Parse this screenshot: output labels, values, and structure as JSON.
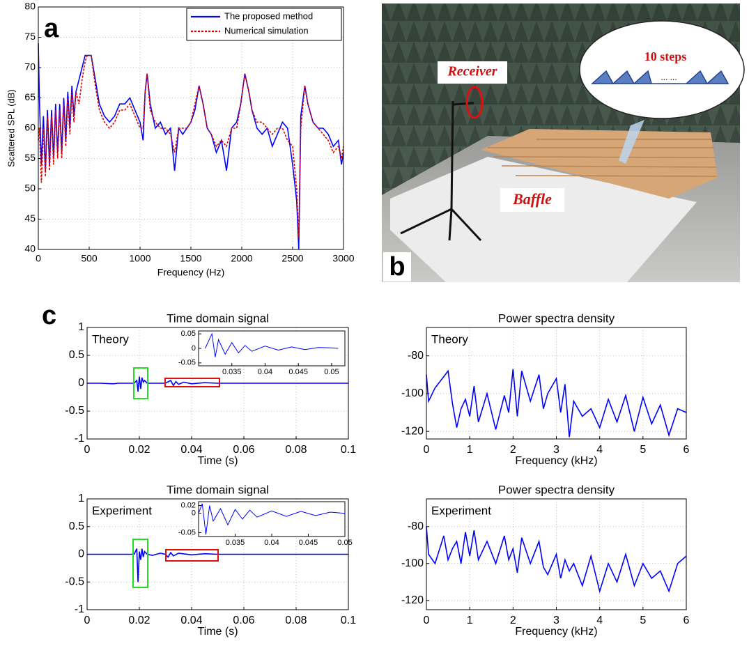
{
  "chart_data": [
    {
      "type": "line",
      "ylabel": "Scattered SPL (dB)",
      "xlabel": "Frequency (Hz)",
      "panel_label": "a",
      "xlim": [
        0,
        3000
      ],
      "xticks": [
        0,
        500,
        1000,
        1500,
        2000,
        2500,
        3000
      ],
      "ylim": [
        40,
        80
      ],
      "yticks": [
        40,
        45,
        50,
        55,
        60,
        65,
        70,
        75,
        80
      ],
      "grid": true,
      "legend": "upper right",
      "x": [
        0,
        10,
        30,
        50,
        70,
        90,
        110,
        130,
        150,
        170,
        190,
        210,
        230,
        250,
        270,
        290,
        310,
        330,
        350,
        370,
        400,
        430,
        460,
        480,
        500,
        520,
        560,
        600,
        650,
        700,
        750,
        800,
        850,
        900,
        950,
        1000,
        1030,
        1050,
        1070,
        1100,
        1150,
        1200,
        1250,
        1300,
        1340,
        1380,
        1420,
        1460,
        1500,
        1540,
        1580,
        1620,
        1660,
        1700,
        1750,
        1800,
        1850,
        1900,
        1950,
        1990,
        2030,
        2070,
        2100,
        2150,
        2200,
        2250,
        2300,
        2350,
        2400,
        2450,
        2500,
        2540,
        2560,
        2580,
        2620,
        2650,
        2700,
        2750,
        2800,
        2850,
        2900,
        2950,
        2980,
        3000
      ],
      "series": [
        {
          "name": "The proposed method",
          "color": "#0000ff",
          "linestyle": "solid",
          "values": [
            74,
            65,
            54,
            62,
            53,
            63,
            54,
            63,
            55,
            64,
            56,
            64,
            56,
            65,
            58,
            66,
            60,
            67,
            62,
            66,
            68,
            70,
            72,
            72,
            72,
            72,
            68,
            64,
            62,
            61,
            62,
            64,
            64,
            65,
            63,
            61,
            58,
            66,
            69,
            64,
            60,
            61,
            59,
            60,
            53,
            60,
            59,
            60,
            61,
            63,
            67,
            64,
            60,
            59,
            56,
            58,
            53,
            60,
            61,
            64,
            69,
            66,
            63,
            60,
            59,
            60,
            57,
            59,
            61,
            60,
            54,
            48,
            40,
            62,
            67,
            64,
            61,
            60,
            60,
            59,
            57,
            58,
            54,
            56
          ]
        },
        {
          "name": "Numerical simulation",
          "color": "#e00000",
          "linestyle": "dashed",
          "values": [
            58,
            60,
            51,
            60,
            52,
            62,
            53,
            62,
            54,
            63,
            55,
            63,
            55,
            64,
            57,
            65,
            59,
            66,
            61,
            66,
            64,
            68,
            71,
            72,
            72,
            72,
            67,
            63,
            61,
            60,
            61,
            63,
            63,
            64,
            62,
            60,
            60,
            66,
            69,
            63,
            61,
            60,
            60,
            59,
            56,
            60,
            60,
            60,
            61,
            64,
            67,
            64,
            60,
            59,
            57,
            58,
            57,
            60,
            60,
            64,
            69,
            66,
            63,
            61,
            61,
            60,
            59,
            60,
            60,
            58,
            57,
            50,
            42,
            60,
            67,
            64,
            61,
            60,
            59,
            58,
            56,
            57,
            55,
            57
          ]
        }
      ]
    },
    {
      "type": "line",
      "title": "Time domain signal",
      "annotation": "Theory",
      "xlabel": "Time (s)",
      "panel_label": "c",
      "xlim": [
        0,
        0.1
      ],
      "xticks": [
        0,
        0.02,
        0.04,
        0.06,
        0.08,
        0.1
      ],
      "ylim": [
        -1,
        1
      ],
      "yticks": [
        -1,
        -0.5,
        0,
        0.5,
        1
      ],
      "grid": true,
      "color": "#0000ff",
      "x": [
        0,
        0.005,
        0.01,
        0.012,
        0.015,
        0.018,
        0.019,
        0.0195,
        0.02,
        0.0205,
        0.021,
        0.0215,
        0.022,
        0.023,
        0.025,
        0.03,
        0.032,
        0.033,
        0.034,
        0.035,
        0.037,
        0.04,
        0.045,
        0.05,
        0.06,
        0.08,
        0.1
      ],
      "values": [
        0,
        0,
        -0.01,
        0,
        0,
        0,
        0.05,
        -0.15,
        0.12,
        -0.1,
        0.1,
        0.02,
        0.05,
        0,
        0,
        0,
        0.05,
        -0.04,
        0.03,
        -0.02,
        0.02,
        -0.01,
        0.01,
        0,
        0,
        0,
        0
      ],
      "inset": {
        "xlim": [
          0.03,
          0.052
        ],
        "xticks": [
          0.035,
          0.04,
          0.045,
          0.05
        ],
        "ylim": [
          -0.06,
          0.06
        ],
        "yticks": [
          -0.05,
          0,
          0.05
        ],
        "color": "#0000ff",
        "x": [
          0.031,
          0.032,
          0.0325,
          0.033,
          0.034,
          0.035,
          0.036,
          0.037,
          0.038,
          0.04,
          0.042,
          0.044,
          0.046,
          0.048,
          0.05,
          0.051
        ],
        "values": [
          0,
          0.05,
          -0.03,
          0.03,
          -0.02,
          0.02,
          -0.015,
          0.01,
          -0.01,
          0.008,
          -0.006,
          0.005,
          -0.004,
          0.003,
          0.002,
          0
        ]
      }
    },
    {
      "type": "line",
      "title": "Power spectra density",
      "annotation": "Theory",
      "xlabel": "Frequency (kHz)",
      "xlim": [
        0,
        6
      ],
      "xticks": [
        0,
        1,
        2,
        3,
        4,
        5,
        6
      ],
      "ylim": [
        -124,
        -65
      ],
      "yticks": [
        -120,
        -100,
        -80
      ],
      "grid": true,
      "color": "#0000ff",
      "x": [
        0,
        0.05,
        0.2,
        0.4,
        0.5,
        0.6,
        0.7,
        0.8,
        0.9,
        1.0,
        1.1,
        1.2,
        1.4,
        1.6,
        1.8,
        1.9,
        2.0,
        2.1,
        2.2,
        2.4,
        2.6,
        2.7,
        2.8,
        3.0,
        3.1,
        3.2,
        3.3,
        3.4,
        3.6,
        3.8,
        4.0,
        4.2,
        4.4,
        4.6,
        4.8,
        5.0,
        5.2,
        5.4,
        5.6,
        5.8,
        6.0
      ],
      "values": [
        -90,
        -104,
        -97,
        -91,
        -88,
        -105,
        -118,
        -108,
        -103,
        -112,
        -96,
        -115,
        -100,
        -119,
        -101,
        -110,
        -87,
        -112,
        -88,
        -104,
        -90,
        -108,
        -100,
        -92,
        -110,
        -95,
        -123,
        -104,
        -112,
        -108,
        -118,
        -103,
        -115,
        -101,
        -120,
        -102,
        -116,
        -106,
        -122,
        -108,
        -110
      ]
    },
    {
      "type": "line",
      "title": "Time domain signal",
      "annotation": "Experiment",
      "xlabel": "Time (s)",
      "xlim": [
        0,
        0.1
      ],
      "xticks": [
        0,
        0.02,
        0.04,
        0.06,
        0.08,
        0.1
      ],
      "ylim": [
        -1,
        1
      ],
      "yticks": [
        -1,
        -0.5,
        0,
        0.5,
        1
      ],
      "grid": true,
      "color": "#0000ff",
      "x": [
        0,
        0.005,
        0.01,
        0.015,
        0.018,
        0.019,
        0.0195,
        0.02,
        0.0205,
        0.021,
        0.0215,
        0.022,
        0.023,
        0.025,
        0.028,
        0.03,
        0.031,
        0.032,
        0.033,
        0.035,
        0.04,
        0.045,
        0.05,
        0.06,
        0.08,
        0.1
      ],
      "values": [
        0,
        0,
        0,
        0,
        0,
        0.1,
        -0.5,
        0.05,
        -0.1,
        0.1,
        -0.05,
        0.05,
        0,
        -0.02,
        0.02,
        0,
        -0.05,
        0.03,
        -0.03,
        0.02,
        -0.01,
        0.01,
        0,
        0,
        0,
        0
      ],
      "inset": {
        "xlim": [
          0.03,
          0.05
        ],
        "xticks": [
          0.035,
          0.04,
          0.045,
          0.05
        ],
        "ylim": [
          -0.06,
          0.03
        ],
        "yticks": [
          -0.05,
          0,
          0.02
        ],
        "color": "#0000ff",
        "x": [
          0.03,
          0.0305,
          0.031,
          0.0315,
          0.032,
          0.033,
          0.034,
          0.035,
          0.036,
          0.037,
          0.038,
          0.04,
          0.042,
          0.044,
          0.046,
          0.048,
          0.05
        ],
        "values": [
          0,
          0.025,
          -0.055,
          0.02,
          -0.02,
          0.012,
          -0.03,
          0.01,
          -0.015,
          0.008,
          -0.01,
          0.006,
          -0.008,
          0.005,
          -0.006,
          0.003,
          0
        ]
      }
    },
    {
      "type": "line",
      "title": "Power spectra density",
      "annotation": "Experiment",
      "xlabel": "Frequency (kHz)",
      "xlim": [
        0,
        6
      ],
      "xticks": [
        0,
        1,
        2,
        3,
        4,
        5,
        6
      ],
      "ylim": [
        -125,
        -65
      ],
      "yticks": [
        -120,
        -100,
        -80
      ],
      "grid": true,
      "color": "#0000ff",
      "x": [
        0,
        0.05,
        0.2,
        0.4,
        0.5,
        0.6,
        0.7,
        0.8,
        0.9,
        1.0,
        1.1,
        1.2,
        1.4,
        1.6,
        1.8,
        1.9,
        2.0,
        2.1,
        2.2,
        2.4,
        2.6,
        2.7,
        2.8,
        3.0,
        3.1,
        3.2,
        3.3,
        3.4,
        3.6,
        3.8,
        4.0,
        4.2,
        4.4,
        4.6,
        4.8,
        5.0,
        5.2,
        5.4,
        5.6,
        5.8,
        6.0
      ],
      "values": [
        -80,
        -95,
        -100,
        -85,
        -98,
        -92,
        -88,
        -100,
        -83,
        -96,
        -82,
        -98,
        -88,
        -100,
        -85,
        -98,
        -92,
        -105,
        -86,
        -100,
        -88,
        -102,
        -106,
        -95,
        -108,
        -98,
        -104,
        -100,
        -112,
        -96,
        -115,
        -100,
        -110,
        -95,
        -112,
        -100,
        -108,
        -104,
        -115,
        -100,
        -96
      ]
    }
  ],
  "photo": {
    "panel_label": "b",
    "receiver": "Receiver",
    "baffle": "Baffle",
    "inset_text": "10 steps",
    "ellipsis": "... ..."
  }
}
